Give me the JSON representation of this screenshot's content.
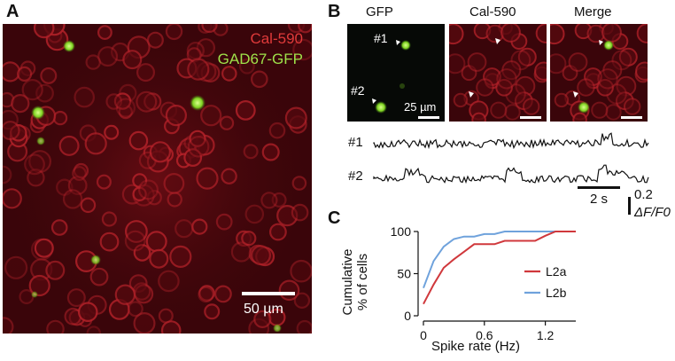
{
  "panel_a": {
    "letter": "A",
    "legend_red": "Cal-590",
    "legend_green": "GAD67-GFP",
    "scale_bar_label": "50 µm"
  },
  "panel_b": {
    "letter": "B",
    "columns": [
      "GFP",
      "Cal-590",
      "Merge"
    ],
    "cell_1_label": "#1",
    "cell_2_label": "#2",
    "scale_bar_label": "25 µm",
    "trace_labels": [
      "#1",
      "#2"
    ],
    "time_scale_label": "2 s",
    "amp_scale_value": "0.2",
    "amp_scale_unit": "ΔF/F0"
  },
  "panel_c": {
    "letter": "C"
  },
  "colors": {
    "l2a": "#d0383c",
    "l2b": "#6fa2dc",
    "red_text": "#e03a3a",
    "green_text": "#9fe24a"
  },
  "chart_data": {
    "type": "line",
    "title": "",
    "xlabel": "Spike rate (Hz)",
    "ylabel": "Cumulative % of cells",
    "xlim": [
      0,
      1.5
    ],
    "ylim": [
      0,
      100
    ],
    "xticks": [
      "0",
      "0.6",
      "1.2"
    ],
    "yticks": [
      "0",
      "50",
      "100"
    ],
    "legend_position": "bottom-right",
    "series": [
      {
        "name": "L2a",
        "color": "#d0383c",
        "x": [
          0,
          0.1,
          0.2,
          0.3,
          0.4,
          0.5,
          0.6,
          0.7,
          0.8,
          0.9,
          1.0,
          1.1,
          1.2,
          1.3,
          1.4,
          1.5
        ],
        "y": [
          14,
          37,
          57,
          67,
          76,
          85,
          85,
          85,
          89,
          89,
          89,
          89,
          95,
          100,
          100,
          100
        ]
      },
      {
        "name": "L2b",
        "color": "#6fa2dc",
        "x": [
          0,
          0.1,
          0.2,
          0.3,
          0.4,
          0.5,
          0.6,
          0.7,
          0.8,
          0.9,
          1.0,
          1.1,
          1.2,
          1.3,
          1.4,
          1.5
        ],
        "y": [
          33,
          65,
          82,
          91,
          94,
          94,
          97,
          97,
          100,
          100,
          100,
          100,
          100,
          100,
          100,
          100
        ]
      }
    ]
  }
}
